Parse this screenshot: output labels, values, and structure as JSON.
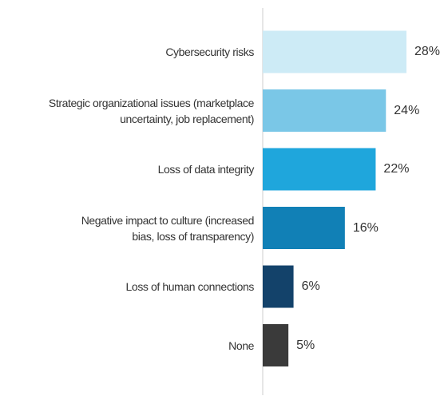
{
  "chart_data": {
    "type": "bar",
    "categories": [
      "Cybersecurity risks",
      "Strategic organizational issues (marketplace\nuncertainty, job replacement)",
      "Loss of data integrity",
      "Negative impact to culture (increased\nbias, loss of transparency)",
      "Loss of human connections",
      "None"
    ],
    "values": [
      28,
      24,
      22,
      16,
      6,
      5
    ],
    "value_labels": [
      "28%",
      "24%",
      "22%",
      "16%",
      "6%",
      "5%"
    ],
    "colors": [
      "#cdebf6",
      "#7ac7e7",
      "#1fa6dc",
      "#1180b6",
      "#13426a",
      "#3a3a3a"
    ],
    "xlim": [
      0,
      28
    ]
  }
}
